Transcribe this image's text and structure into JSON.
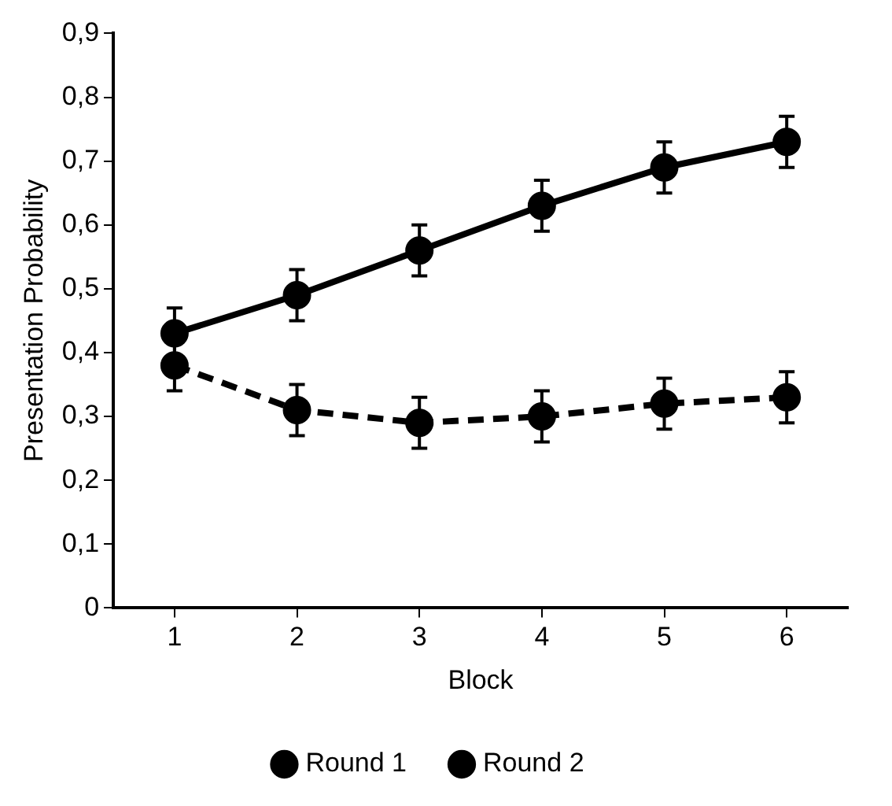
{
  "chart_data": {
    "type": "line",
    "xlabel": "Block",
    "ylabel": "Presentation Probability",
    "categories": [
      "1",
      "2",
      "3",
      "4",
      "5",
      "6"
    ],
    "series": [
      {
        "name": "Round 1",
        "color": "#000000",
        "line_style": "solid",
        "values": [
          0.43,
          0.49,
          0.56,
          0.63,
          0.69,
          0.73
        ],
        "errors": [
          0.04,
          0.04,
          0.04,
          0.04,
          0.04,
          0.04
        ]
      },
      {
        "name": "Round 2",
        "color": "#000000",
        "line_style": "dashed",
        "values": [
          0.38,
          0.31,
          0.29,
          0.3,
          0.32,
          0.33
        ],
        "errors": [
          0.04,
          0.04,
          0.04,
          0.04,
          0.04,
          0.04
        ]
      }
    ],
    "ylim": [
      0,
      0.9
    ],
    "yticks": [
      0,
      {
        "value": 0.1,
        "label": "0,1"
      },
      {
        "value": 0.2,
        "label": "0,2"
      },
      {
        "value": 0.3,
        "label": "0,3"
      },
      {
        "value": 0.4,
        "label": "0,4"
      },
      {
        "value": 0.5,
        "label": "0,5"
      },
      {
        "value": 0.6,
        "label": "0,6"
      },
      {
        "value": 0.7,
        "label": "0,7"
      },
      {
        "value": 0.8,
        "label": "0,8"
      },
      {
        "value": 0.9,
        "label": "0,9"
      }
    ],
    "grid": false,
    "legend": "bottom",
    "marker": "circle"
  }
}
